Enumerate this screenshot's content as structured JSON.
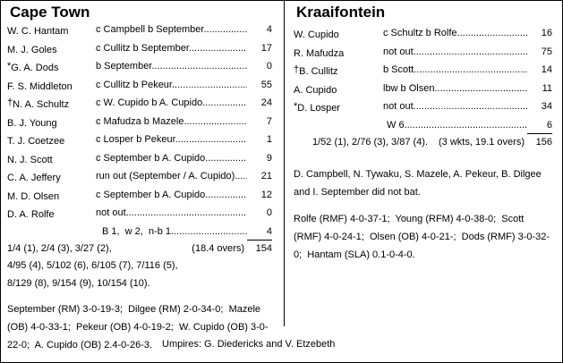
{
  "left": {
    "team": "Cape Town",
    "batting": [
      {
        "prefix": "",
        "name": "W. C. Hantam",
        "dismissal": "c Campbell b September",
        "runs": "4"
      },
      {
        "prefix": "",
        "name": "M. J. Goles",
        "dismissal": "c Cullitz b September",
        "runs": "17"
      },
      {
        "prefix": "*",
        "name": "G. A. Dods",
        "dismissal": "b September",
        "runs": "0"
      },
      {
        "prefix": "",
        "name": "F. S. Middleton",
        "dismissal": "c Cullitz b Pekeur",
        "runs": "55"
      },
      {
        "prefix": "†",
        "name": "N. A. Schultz",
        "dismissal": "c W. Cupido b A. Cupido",
        "runs": "24"
      },
      {
        "prefix": "",
        "name": "B. J. Young",
        "dismissal": "c Mafudza b Mazele",
        "runs": "7"
      },
      {
        "prefix": "",
        "name": "T. J. Coetzee",
        "dismissal": "c Losper b Pekeur",
        "runs": "1"
      },
      {
        "prefix": "",
        "name": "N. J. Scott",
        "dismissal": "c September b A. Cupido",
        "runs": "9"
      },
      {
        "prefix": "",
        "name": "C. A. Jeffery",
        "dismissal": "run out (September / A. Cupido)",
        "runs": "21"
      },
      {
        "prefix": "",
        "name": "M. D. Olsen",
        "dismissal": "c September b A. Cupido",
        "runs": "12"
      },
      {
        "prefix": "",
        "name": "D. A. Rolfe",
        "dismissal": "not out",
        "runs": "0"
      }
    ],
    "extras": {
      "label": "B 1,  w 2,  n-b 1",
      "runs": "4"
    },
    "total": {
      "fow": "1/4 (1), 2/4 (3), 3/27 (2),",
      "overs": "(18.4 overs)",
      "runs": "154"
    },
    "fow_continued": [
      "4/95 (4), 5/102 (6), 6/105 (7), 7/116 (5),",
      "8/129 (8), 9/154 (9), 10/154 (10)."
    ],
    "bowling": "September (RM) 3-0-19-3;  Dilgee (RM) 2-0-34-0;  Mazele (OB) 4-0-33-1;  Pekeur (OB) 4-0-19-2;  W. Cupido (OB) 3-0-22-0;  A. Cupido (OB) 2.4-0-26-3."
  },
  "right": {
    "team": "Kraaifontein",
    "batting": [
      {
        "prefix": "",
        "name": "W. Cupido",
        "dismissal": "c Schultz b Rolfe",
        "runs": "16"
      },
      {
        "prefix": "",
        "name": "R. Mafudza",
        "dismissal": "not out",
        "runs": "75"
      },
      {
        "prefix": "†",
        "name": "B. Cullitz",
        "dismissal": "b Scott",
        "runs": "14"
      },
      {
        "prefix": "",
        "name": "A. Cupido",
        "dismissal": "lbw b Olsen",
        "runs": "11"
      },
      {
        "prefix": "*",
        "name": "D. Losper",
        "dismissal": "not out",
        "runs": "34"
      }
    ],
    "extras": {
      "label": "W 6",
      "runs": "6"
    },
    "total": {
      "fow": "1/52 (1), 2/76 (3), 3/87 (4).",
      "overs": "(3 wkts, 19.1 overs)",
      "runs": "156"
    },
    "did_not_bat": "D. Campbell, N. Tywaku, S. Mazele, A. Pekeur, B. Dilgee and I. September did not bat.",
    "bowling": "Rolfe (RMF) 4-0-37-1;  Young (RFM) 4-0-38-0;  Scott (RMF) 4-0-24-1;  Olsen (OB) 4-0-21-;  Dods (RMF) 3-0-32-0;  Hantam (SLA) 0.1-0-4-0."
  },
  "footer": {
    "umpires": "Umpires: G. Diedericks and V. Etzebeth"
  }
}
